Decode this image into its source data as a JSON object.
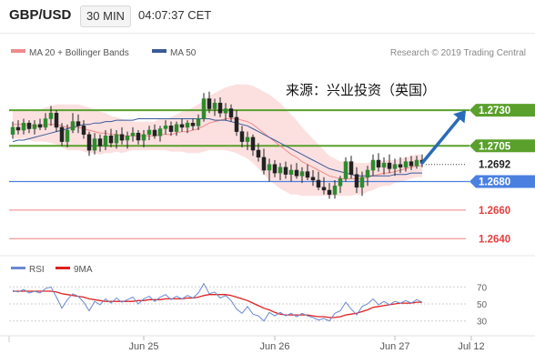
{
  "header": {
    "symbol": "GBP/USD",
    "timeframe": "30 MIN",
    "time": "04:07:37 CET"
  },
  "legend": {
    "items": [
      {
        "label": "MA 20 + Bollinger Bands",
        "color": "#f08b8b"
      },
      {
        "label": "MA 50",
        "color": "#3b5a9a"
      }
    ],
    "copyright": "Research © 2019 Trading Central"
  },
  "annotation": "来源：兴业投资（英国）",
  "chart_data": [
    {
      "type": "candlestick",
      "title": "",
      "ylim": [
        1.263,
        1.276
      ],
      "x_ticks": [
        "Jun 25",
        "Jun 26",
        "Jun 27",
        "Jul 12"
      ],
      "overlays": [
        "MA 20 + Bollinger Bands",
        "MA 50"
      ],
      "candles": [
        [
          1.2713,
          1.2722,
          1.271,
          1.2718
        ],
        [
          1.2718,
          1.2723,
          1.2713,
          1.2716
        ],
        [
          1.2716,
          1.2724,
          1.2713,
          1.2721
        ],
        [
          1.2721,
          1.2723,
          1.2714,
          1.2717
        ],
        [
          1.2717,
          1.2723,
          1.2713,
          1.272
        ],
        [
          1.272,
          1.2724,
          1.2716,
          1.2718
        ],
        [
          1.2718,
          1.2728,
          1.2716,
          1.2724
        ],
        [
          1.2724,
          1.2733,
          1.2719,
          1.2728
        ],
        [
          1.2728,
          1.273,
          1.2715,
          1.2718
        ],
        [
          1.2718,
          1.2721,
          1.2705,
          1.2708
        ],
        [
          1.2708,
          1.272,
          1.2704,
          1.2716
        ],
        [
          1.2716,
          1.2728,
          1.2714,
          1.2722
        ],
        [
          1.2722,
          1.2727,
          1.2714,
          1.2719
        ],
        [
          1.2719,
          1.2723,
          1.271,
          1.2713
        ],
        [
          1.2713,
          1.2715,
          1.2698,
          1.2702
        ],
        [
          1.2702,
          1.2714,
          1.2699,
          1.271
        ],
        [
          1.271,
          1.2713,
          1.2701,
          1.2705
        ],
        [
          1.2705,
          1.2716,
          1.2702,
          1.2712
        ],
        [
          1.2712,
          1.2717,
          1.2704,
          1.2707
        ],
        [
          1.2707,
          1.2716,
          1.2703,
          1.2713
        ],
        [
          1.2713,
          1.2718,
          1.2706,
          1.2709
        ],
        [
          1.2709,
          1.2715,
          1.2703,
          1.2712
        ],
        [
          1.2712,
          1.2718,
          1.2708,
          1.2714
        ],
        [
          1.2714,
          1.2716,
          1.2706,
          1.2709
        ],
        [
          1.2709,
          1.2716,
          1.2704,
          1.2713
        ],
        [
          1.2713,
          1.2719,
          1.2709,
          1.2716
        ],
        [
          1.2716,
          1.272,
          1.271,
          1.2712
        ],
        [
          1.2712,
          1.2719,
          1.2708,
          1.2717
        ],
        [
          1.2717,
          1.2723,
          1.2713,
          1.2719
        ],
        [
          1.2719,
          1.2722,
          1.2712,
          1.2715
        ],
        [
          1.2715,
          1.2722,
          1.2712,
          1.272
        ],
        [
          1.272,
          1.2724,
          1.2715,
          1.2718
        ],
        [
          1.2718,
          1.2723,
          1.2714,
          1.2721
        ],
        [
          1.2721,
          1.2724,
          1.2716,
          1.2719
        ],
        [
          1.2719,
          1.2727,
          1.2716,
          1.2724
        ],
        [
          1.2724,
          1.2742,
          1.2722,
          1.2738
        ],
        [
          1.2738,
          1.2743,
          1.2728,
          1.2731
        ],
        [
          1.2731,
          1.2738,
          1.2726,
          1.2735
        ],
        [
          1.2735,
          1.2739,
          1.2725,
          1.2728
        ],
        [
          1.2728,
          1.2735,
          1.2723,
          1.2731
        ],
        [
          1.2731,
          1.2734,
          1.2722,
          1.2725
        ],
        [
          1.2725,
          1.273,
          1.2712,
          1.2715
        ],
        [
          1.2715,
          1.2719,
          1.2704,
          1.2708
        ],
        [
          1.2708,
          1.2715,
          1.2702,
          1.2711
        ],
        [
          1.2711,
          1.2713,
          1.2698,
          1.2702
        ],
        [
          1.2702,
          1.2707,
          1.2694,
          1.2697
        ],
        [
          1.2697,
          1.2703,
          1.2685,
          1.2688
        ],
        [
          1.2688,
          1.2696,
          1.268,
          1.2692
        ],
        [
          1.2692,
          1.2695,
          1.2683,
          1.2686
        ],
        [
          1.2686,
          1.2693,
          1.2681,
          1.269
        ],
        [
          1.269,
          1.2694,
          1.2682,
          1.2685
        ],
        [
          1.2685,
          1.2692,
          1.268,
          1.2688
        ],
        [
          1.2688,
          1.2693,
          1.2682,
          1.2684
        ],
        [
          1.2684,
          1.269,
          1.2679,
          1.2687
        ],
        [
          1.2687,
          1.2692,
          1.2681,
          1.2683
        ],
        [
          1.2683,
          1.2688,
          1.2677,
          1.2681
        ],
        [
          1.2681,
          1.2687,
          1.2674,
          1.2676
        ],
        [
          1.2676,
          1.2683,
          1.2671,
          1.2674
        ],
        [
          1.2674,
          1.2679,
          1.2668,
          1.2671
        ],
        [
          1.2671,
          1.2681,
          1.2668,
          1.2677
        ],
        [
          1.2677,
          1.2684,
          1.2672,
          1.2682
        ],
        [
          1.2682,
          1.2697,
          1.268,
          1.2694
        ],
        [
          1.2694,
          1.2698,
          1.2682,
          1.2685
        ],
        [
          1.2685,
          1.269,
          1.2672,
          1.2676
        ],
        [
          1.2676,
          1.2687,
          1.267,
          1.2683
        ],
        [
          1.2683,
          1.2691,
          1.2677,
          1.2688
        ],
        [
          1.2688,
          1.2699,
          1.2684,
          1.2695
        ],
        [
          1.2695,
          1.27,
          1.2687,
          1.269
        ],
        [
          1.269,
          1.2697,
          1.2685,
          1.2693
        ],
        [
          1.2693,
          1.2699,
          1.2686,
          1.2689
        ],
        [
          1.2689,
          1.2696,
          1.2684,
          1.2692
        ],
        [
          1.2692,
          1.2697,
          1.2686,
          1.269
        ],
        [
          1.269,
          1.2697,
          1.2687,
          1.2694
        ],
        [
          1.2694,
          1.2698,
          1.2688,
          1.2691
        ],
        [
          1.2691,
          1.2698,
          1.2689,
          1.2695
        ],
        [
          1.2695,
          1.2699,
          1.269,
          1.2693
        ]
      ],
      "ma20": [
        1.272,
        1.272,
        1.272,
        1.2719,
        1.2719,
        1.2719,
        1.272,
        1.272,
        1.272,
        1.2719,
        1.2718,
        1.2718,
        1.2718,
        1.2717,
        1.2716,
        1.2715,
        1.2714,
        1.2714,
        1.2713,
        1.2713,
        1.2712,
        1.2712,
        1.2712,
        1.2712,
        1.2712,
        1.2712,
        1.2712,
        1.2713,
        1.2713,
        1.2713,
        1.2714,
        1.2715,
        1.2715,
        1.2716,
        1.2717,
        1.2719,
        1.2721,
        1.2722,
        1.2723,
        1.2724,
        1.2724,
        1.2724,
        1.2723,
        1.2722,
        1.272,
        1.2717,
        1.2714,
        1.2711,
        1.2708,
        1.2705,
        1.2702,
        1.2699,
        1.2697,
        1.2694,
        1.2692,
        1.269,
        1.2688,
        1.2686,
        1.2684,
        1.2683,
        1.2682,
        1.2682,
        1.2682,
        1.2682,
        1.2682,
        1.2683,
        1.2684,
        1.2685,
        1.2686,
        1.2686,
        1.2687,
        1.2688,
        1.2689,
        1.269,
        1.2691,
        1.2691
      ],
      "bollinger_width": [
        0.001,
        0.001,
        0.001,
        0.001,
        0.0011,
        0.0011,
        0.0012,
        0.0013,
        0.0014,
        0.0015,
        0.0016,
        0.0016,
        0.0016,
        0.0016,
        0.0016,
        0.0015,
        0.0015,
        0.0014,
        0.0013,
        0.0012,
        0.0012,
        0.0011,
        0.001,
        0.001,
        0.001,
        0.001,
        0.001,
        0.0011,
        0.0011,
        0.0012,
        0.0013,
        0.0014,
        0.0015,
        0.0016,
        0.0017,
        0.0018,
        0.0019,
        0.002,
        0.0021,
        0.0022,
        0.0023,
        0.0024,
        0.0025,
        0.0026,
        0.0027,
        0.0028,
        0.0029,
        0.003,
        0.003,
        0.003,
        0.0029,
        0.0028,
        0.0026,
        0.0024,
        0.0022,
        0.002,
        0.0018,
        0.0016,
        0.0014,
        0.0013,
        0.0012,
        0.0012,
        0.0012,
        0.0011,
        0.0011,
        0.001,
        0.001,
        0.0009,
        0.0009,
        0.0009,
        0.0008,
        0.0008,
        0.0008,
        0.0008,
        0.0008,
        0.0008
      ],
      "ma50": [
        1.2708,
        1.2709,
        1.2709,
        1.271,
        1.2711,
        1.2712,
        1.2713,
        1.2714,
        1.2715,
        1.2716,
        1.2717,
        1.2718,
        1.2719,
        1.272,
        1.272,
        1.2721,
        1.2721,
        1.2722,
        1.2722,
        1.2723,
        1.2723,
        1.2723,
        1.2723,
        1.2724,
        1.2724,
        1.2724,
        1.2724,
        1.2724,
        1.2724,
        1.2724,
        1.2724,
        1.2724,
        1.2724,
        1.2724,
        1.2724,
        1.2724,
        1.2724,
        1.2723,
        1.2723,
        1.2723,
        1.2722,
        1.2721,
        1.272,
        1.2719,
        1.2717,
        1.2715,
        1.2713,
        1.2711,
        1.2709,
        1.2707,
        1.2705,
        1.2703,
        1.2701,
        1.2699,
        1.2697,
        1.2695,
        1.2693,
        1.2691,
        1.2689,
        1.2688,
        1.2687,
        1.2686,
        1.2685,
        1.2684,
        1.2684,
        1.2684,
        1.2684,
        1.2684,
        1.2684,
        1.2684,
        1.2685,
        1.2685,
        1.2685,
        1.2686,
        1.2686,
        1.2686
      ],
      "levels": [
        {
          "value": 1.273,
          "label": "1.2730",
          "color": "#5aa02c",
          "style": "tag"
        },
        {
          "value": 1.2705,
          "label": "1.2705",
          "color": "#5aa02c",
          "style": "tag"
        },
        {
          "value": 1.2692,
          "label": "1.2692",
          "color": "#222222",
          "style": "price"
        },
        {
          "value": 1.268,
          "label": "1.2680",
          "color": "#4a80e0",
          "style": "tag"
        },
        {
          "value": 1.266,
          "label": "1.2660",
          "color": "#e04040",
          "style": "text"
        },
        {
          "value": 1.264,
          "label": "1.2640",
          "color": "#e04040",
          "style": "text"
        }
      ],
      "arrow": {
        "from_index": 75,
        "from_value": 1.2693,
        "to_index": 83,
        "to_value": 1.273,
        "color": "#2a6ab8"
      }
    },
    {
      "type": "line",
      "title": "",
      "series": [
        {
          "name": "RSI",
          "color": "#6a8ad0"
        },
        {
          "name": "9MA",
          "color": "#e02020"
        }
      ],
      "ylim": [
        20,
        80
      ],
      "y_ticks": [
        70,
        50,
        30
      ],
      "rsi": [
        66,
        64,
        67,
        63,
        65,
        63,
        68,
        70,
        58,
        45,
        55,
        62,
        59,
        52,
        42,
        53,
        49,
        56,
        51,
        57,
        52,
        55,
        58,
        50,
        56,
        59,
        53,
        58,
        61,
        55,
        59,
        56,
        60,
        57,
        63,
        74,
        62,
        64,
        57,
        60,
        54,
        44,
        39,
        47,
        38,
        36,
        30,
        40,
        36,
        40,
        36,
        39,
        35,
        39,
        36,
        34,
        31,
        33,
        30,
        39,
        42,
        52,
        44,
        37,
        47,
        50,
        56,
        49,
        53,
        49,
        53,
        51,
        54,
        51,
        55,
        52
      ],
      "ma9": [
        65,
        65,
        65,
        65,
        65,
        65,
        65,
        65,
        64,
        62,
        61,
        60,
        59,
        58,
        56,
        55,
        54,
        53,
        53,
        53,
        53,
        53,
        53,
        54,
        54,
        55,
        55,
        55,
        56,
        56,
        56,
        56,
        57,
        57,
        58,
        60,
        61,
        61,
        61,
        61,
        60,
        58,
        56,
        54,
        51,
        48,
        45,
        43,
        40,
        38,
        37,
        37,
        37,
        37,
        37,
        36,
        35,
        35,
        34,
        34,
        35,
        37,
        38,
        39,
        41,
        43,
        46,
        47,
        48,
        49,
        50,
        51,
        51,
        51,
        52,
        52
      ]
    }
  ]
}
